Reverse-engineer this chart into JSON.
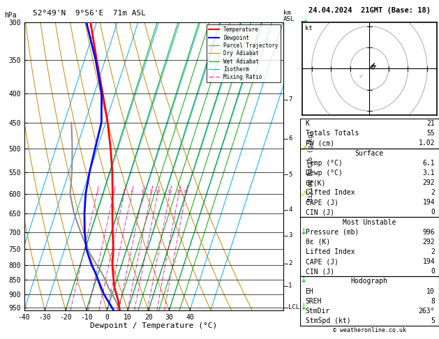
{
  "title_left": "52°49'N  9°56'E  71m ASL",
  "title_right": "24.04.2024  21GMT (Base: 18)",
  "xlabel": "Dewpoint / Temperature (°C)",
  "pmin": 300,
  "pmax": 960,
  "xmin": -40,
  "xmax": 40,
  "skew": 45,
  "temp_color": "#ff0000",
  "dewp_color": "#0000ff",
  "parcel_color": "#909090",
  "dry_adiabat_color": "#cc8800",
  "wet_adiabat_color": "#00aa00",
  "isotherm_color": "#00aaff",
  "mixing_ratio_color": "#ee0099",
  "pressure_levels": [
    300,
    350,
    400,
    450,
    500,
    550,
    600,
    650,
    700,
    750,
    800,
    850,
    900,
    950
  ],
  "isotherm_values": [
    -50,
    -40,
    -30,
    -20,
    -10,
    0,
    10,
    20,
    30,
    40,
    50
  ],
  "dry_adiabat_origins": [
    -40,
    -30,
    -20,
    -10,
    0,
    10,
    20,
    30,
    40,
    50,
    60,
    70
  ],
  "wet_adiabat_origins": [
    -20,
    -10,
    0,
    5,
    10,
    15,
    20,
    25,
    30,
    35
  ],
  "mixing_ratio_values": [
    1,
    2,
    3,
    4,
    6,
    8,
    10,
    15,
    20,
    25
  ],
  "legend_items": [
    {
      "label": "Temperature",
      "color": "#ff0000",
      "style": "-",
      "lw": 1.5
    },
    {
      "label": "Dewpoint",
      "color": "#0000ff",
      "style": "-",
      "lw": 1.5
    },
    {
      "label": "Parcel Trajectory",
      "color": "#909090",
      "style": "-",
      "lw": 1.0
    },
    {
      "label": "Dry Adiabat",
      "color": "#cc8800",
      "style": "-",
      "lw": 0.8
    },
    {
      "label": "Wet Adiabat",
      "color": "#00aa00",
      "style": "-",
      "lw": 0.8
    },
    {
      "label": "Isotherm",
      "color": "#00aaff",
      "style": "-",
      "lw": 0.8
    },
    {
      "label": "Mixing Ratio",
      "color": "#ee0099",
      "style": "-.",
      "lw": 0.7
    }
  ],
  "km_labels": [
    [
      410,
      "7"
    ],
    [
      480,
      "6"
    ],
    [
      555,
      "5"
    ],
    [
      640,
      "4"
    ],
    [
      710,
      "3"
    ],
    [
      795,
      "2"
    ],
    [
      870,
      "1"
    ],
    [
      950,
      "LCL"
    ]
  ],
  "temp_profile": {
    "pressure": [
      960,
      950,
      925,
      900,
      875,
      850,
      825,
      800,
      775,
      750,
      700,
      650,
      600,
      550,
      500,
      450,
      400,
      350,
      300
    ],
    "temp": [
      6.1,
      5.5,
      4.0,
      2.0,
      0.0,
      -1.5,
      -3.0,
      -4.5,
      -5.5,
      -6.5,
      -9.5,
      -12.5,
      -15.5,
      -19.0,
      -23.5,
      -29.0,
      -36.0,
      -44.0,
      -53.0
    ]
  },
  "dewp_profile": {
    "pressure": [
      960,
      950,
      925,
      900,
      875,
      850,
      825,
      800,
      775,
      750,
      700,
      650,
      600,
      550,
      500,
      450,
      400,
      350,
      300
    ],
    "temp": [
      3.1,
      2.0,
      -1.0,
      -4.0,
      -6.5,
      -9.0,
      -11.5,
      -14.5,
      -17.0,
      -19.5,
      -23.0,
      -26.0,
      -28.5,
      -30.0,
      -31.0,
      -32.0,
      -36.5,
      -44.5,
      -55.0
    ]
  },
  "parcel_profile": {
    "pressure": [
      960,
      950,
      925,
      900,
      875,
      850,
      825,
      800,
      775,
      750,
      700,
      650,
      600,
      550,
      500,
      450
    ],
    "temp": [
      6.1,
      5.2,
      2.8,
      0.0,
      -3.0,
      -5.5,
      -8.5,
      -12.0,
      -15.5,
      -19.0,
      -25.0,
      -31.0,
      -36.0,
      -38.5,
      -42.0,
      -46.5
    ]
  },
  "wind_barbs": [
    {
      "p": 950,
      "color": "#00cc00",
      "symbol": "↓"
    },
    {
      "p": 850,
      "color": "#00cc00",
      "symbol": "↓"
    },
    {
      "p": 700,
      "color": "#00cc00",
      "symbol": "↓"
    },
    {
      "p": 600,
      "color": "#cccc00",
      "symbol": "↗"
    },
    {
      "p": 500,
      "color": "#cccc00",
      "symbol": "↗"
    },
    {
      "p": 400,
      "color": "#cccc00",
      "symbol": "↗"
    },
    {
      "p": 300,
      "color": "#00cc00",
      "symbol": "→"
    }
  ],
  "rp_K": 21,
  "rp_TT": 55,
  "rp_PW": 1.02,
  "rp_surf_temp": 6.1,
  "rp_surf_dewp": 3.1,
  "rp_surf_the": 292,
  "rp_surf_li": 2,
  "rp_surf_cape": 194,
  "rp_surf_cin": 0,
  "rp_mu_press": 996,
  "rp_mu_the": 292,
  "rp_mu_li": 2,
  "rp_mu_cape": 194,
  "rp_mu_cin": 0,
  "rp_hodo_eh": 10,
  "rp_hodo_sreh": 8,
  "rp_hodo_stmdir": "263°",
  "rp_hodo_stmspd": 5
}
